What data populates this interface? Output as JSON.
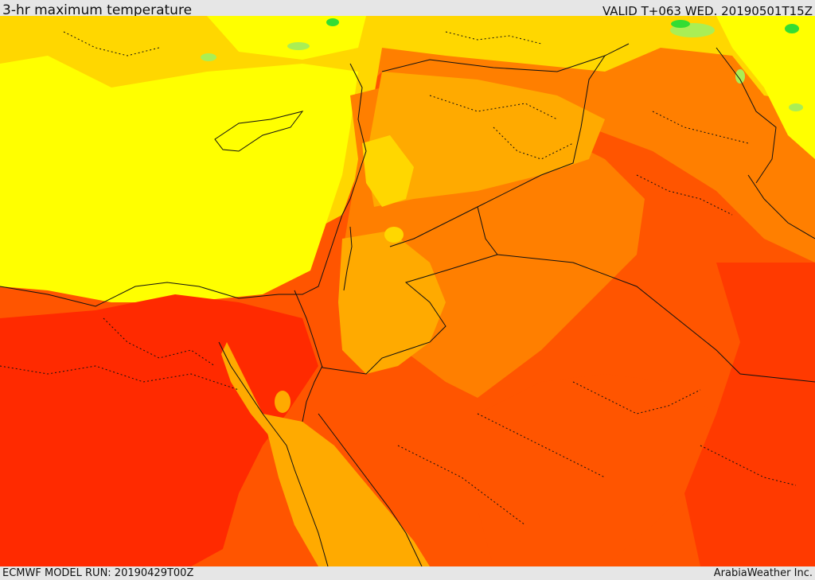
{
  "header": {
    "title": "3-hr maximum temperature",
    "valid": "VALID T+063 WED. 20190501T15Z"
  },
  "footer": {
    "model_run": "ECMWF MODEL RUN: 20190429T00Z",
    "credit": "ArabiaWeather Inc."
  },
  "palette": {
    "cool_green": "#33dd33",
    "light_green": "#aaee55",
    "yellow": "#ffff00",
    "golden": "#ffd700",
    "orange": "#ffaa00",
    "dark_orange": "#ff7f00",
    "red_orange": "#ff5500",
    "red": "#ff2a00"
  }
}
